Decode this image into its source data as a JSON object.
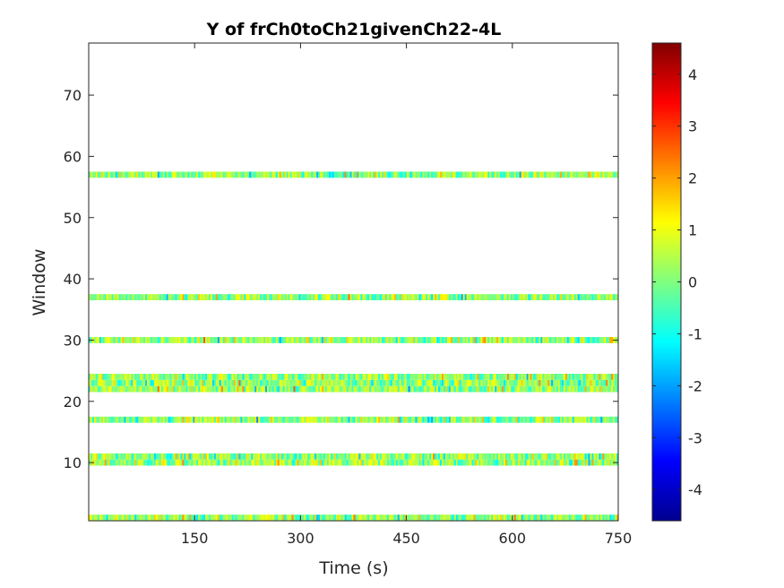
{
  "chart_data": {
    "type": "heatmap",
    "title": "Y of frCh0toCh21givenCh22-4L",
    "xlabel": "Time (s)",
    "ylabel": "Window",
    "xlim": [
      0,
      750
    ],
    "ylim": [
      0.5,
      78.5
    ],
    "x_ticks": [
      150,
      300,
      450,
      600,
      750
    ],
    "y_ticks": [
      10,
      20,
      30,
      40,
      50,
      60,
      70
    ],
    "colorbar": {
      "colormap": "jet",
      "clim": [
        -4.6,
        4.6
      ],
      "ticks": [
        -4,
        -3,
        -2,
        -1,
        0,
        1,
        2,
        3,
        4
      ]
    },
    "grid": false,
    "rows_with_data": [
      1,
      10,
      11,
      17,
      22,
      23,
      24,
      30,
      37,
      57
    ],
    "time_bins": 300,
    "value_range": [
      -4.6,
      4.6
    ]
  }
}
